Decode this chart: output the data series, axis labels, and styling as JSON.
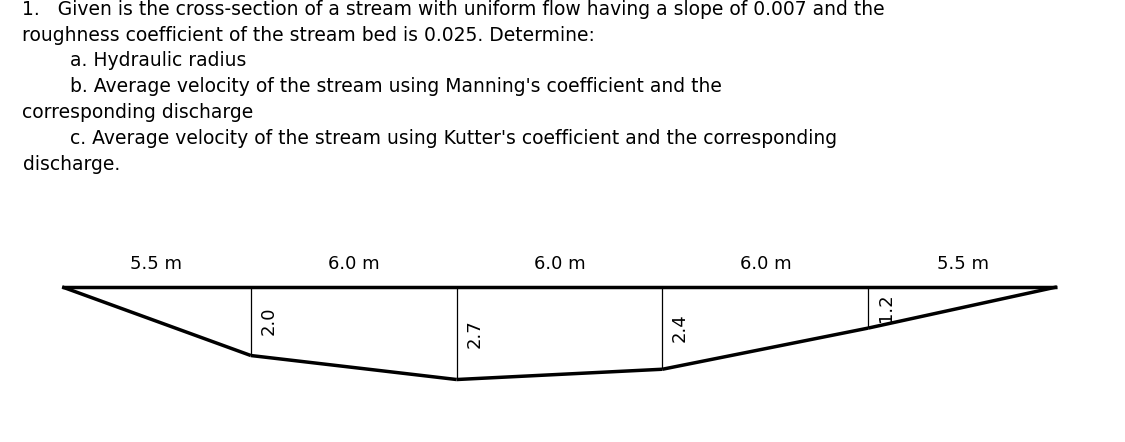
{
  "line1": "1.   Given is the cross-section of a stream with uniform flow having a slope of 0.007 and the",
  "line2": "roughness coefficient of the stream bed is 0.025. Determine:",
  "line3": "        a. Hydraulic radius",
  "line4": "        b. Average velocity of the stream using Manning's coefficient and the",
  "line5": "corresponding discharge",
  "line6": "        c. Average velocity of the stream using Kutter's coefficient and the corresponding",
  "line7": "discharge.",
  "segment_labels": [
    "5.5 m",
    "6.0 m",
    "6.0 m",
    "6.0 m",
    "5.5 m"
  ],
  "depth_labels": [
    "2.0",
    "2.7",
    "2.4",
    "1.2"
  ],
  "bg_color": "#ffffff",
  "line_color": "#000000",
  "text_color": "#000000",
  "title_fontsize": 13.5,
  "diagram_fontsize": 13.0,
  "x_positions": [
    0.0,
    5.5,
    11.5,
    17.5,
    23.5,
    29.0
  ],
  "y_positions": [
    0.0,
    -2.0,
    -2.7,
    -2.4,
    -1.2,
    0.0
  ]
}
